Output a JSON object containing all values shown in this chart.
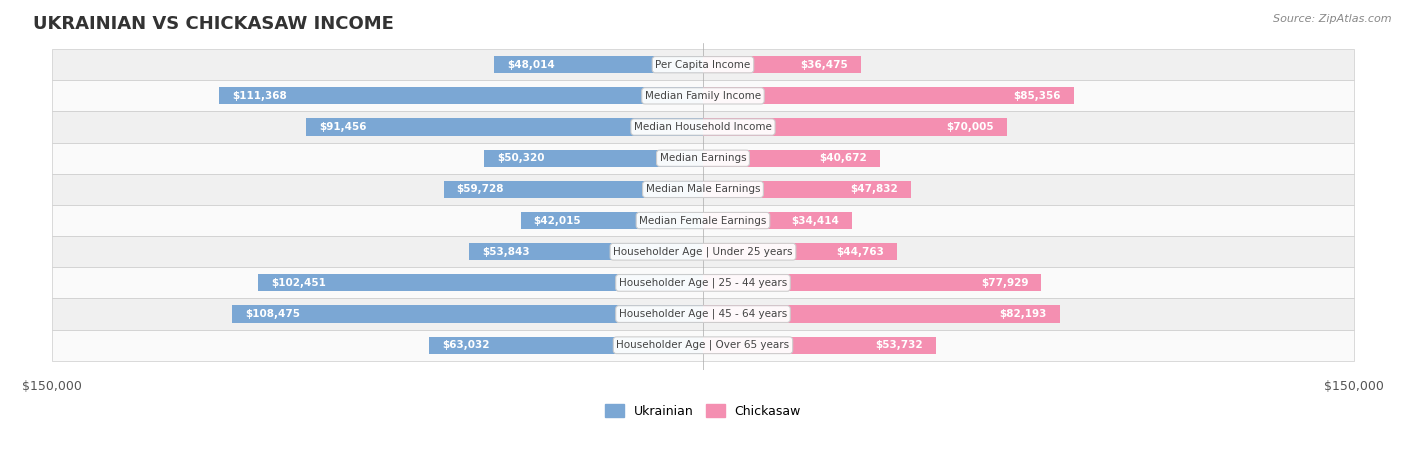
{
  "title": "UKRAINIAN VS CHICKASAW INCOME",
  "source": "Source: ZipAtlas.com",
  "categories": [
    "Per Capita Income",
    "Median Family Income",
    "Median Household Income",
    "Median Earnings",
    "Median Male Earnings",
    "Median Female Earnings",
    "Householder Age | Under 25 years",
    "Householder Age | 25 - 44 years",
    "Householder Age | 45 - 64 years",
    "Householder Age | Over 65 years"
  ],
  "ukrainian_values": [
    48014,
    111368,
    91456,
    50320,
    59728,
    42015,
    53843,
    102451,
    108475,
    63032
  ],
  "chickasaw_values": [
    36475,
    85356,
    70005,
    40672,
    47832,
    34414,
    44763,
    77929,
    82193,
    53732
  ],
  "ukrainian_labels": [
    "$48,014",
    "$111,368",
    "$91,456",
    "$50,320",
    "$59,728",
    "$42,015",
    "$53,843",
    "$102,451",
    "$108,475",
    "$63,032"
  ],
  "chickasaw_labels": [
    "$36,475",
    "$85,356",
    "$70,005",
    "$40,672",
    "$47,832",
    "$34,414",
    "$44,763",
    "$77,929",
    "$82,193",
    "$53,732"
  ],
  "ukrainian_color": "#7ba7d4",
  "ukrainian_color_dark": "#5b8fc9",
  "chickasaw_color": "#f48fb1",
  "chickasaw_color_dark": "#e91e8c",
  "max_value": 150000,
  "background_color": "#f5f5f5",
  "row_bg_color": "#f0f0f0",
  "row_bg_color2": "#fafafa",
  "label_inside_color": "#ffffff",
  "label_outside_color": "#888888"
}
